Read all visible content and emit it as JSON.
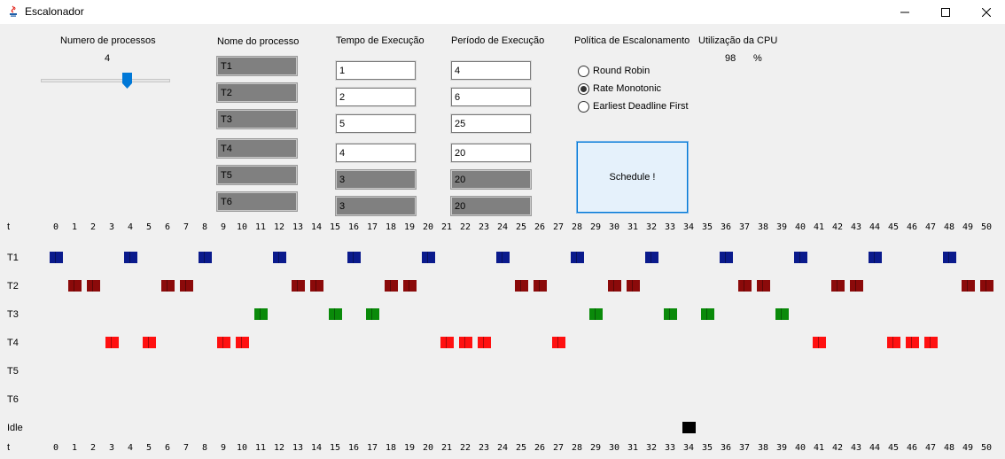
{
  "window": {
    "title": "Escalonador"
  },
  "process_count": {
    "label": "Numero de processos",
    "value": "4"
  },
  "columns": {
    "name": "Nome do processo",
    "exec_time": "Tempo de Execução",
    "period": "Período de Execução",
    "policy": "Política de Escalonamento",
    "cpu": "Utilização da CPU"
  },
  "processes": [
    {
      "name": "T1",
      "exec": "1",
      "period": "4",
      "enabled": true
    },
    {
      "name": "T2",
      "exec": "2",
      "period": "6",
      "enabled": true
    },
    {
      "name": "T3",
      "exec": "5",
      "period": "25",
      "enabled": true
    },
    {
      "name": "T4",
      "exec": "4",
      "period": "20",
      "enabled": true
    },
    {
      "name": "T5",
      "exec": "3",
      "period": "20",
      "enabled": false
    },
    {
      "name": "T6",
      "exec": "3",
      "period": "20",
      "enabled": false
    }
  ],
  "policies": [
    {
      "label": "Round Robin",
      "selected": false
    },
    {
      "label": "Rate Monotonic",
      "selected": true
    },
    {
      "label": "Earliest Deadline First",
      "selected": false
    }
  ],
  "cpu_utilization": {
    "value": "98",
    "unit": "%"
  },
  "schedule_button": "Schedule !",
  "timeline": {
    "axis_label": "t",
    "ticks": [
      "0",
      "1",
      "2",
      "3",
      "4",
      "5",
      "6",
      "7",
      "8",
      "9",
      "10",
      "11",
      "12",
      "13",
      "14",
      "15",
      "16",
      "17",
      "18",
      "19",
      "20",
      "21",
      "22",
      "23",
      "24",
      "25",
      "26",
      "27",
      "28",
      "29",
      "30",
      "31",
      "32",
      "33",
      "34",
      "35",
      "36",
      "37",
      "38",
      "39",
      "40",
      "41",
      "42",
      "43",
      "44",
      "45",
      "46",
      "47",
      "48",
      "49",
      "50"
    ],
    "rows": [
      {
        "label": "T1",
        "color": "#0a1a8c",
        "slots": [
          0,
          4,
          8,
          12,
          16,
          20,
          24,
          28,
          32,
          36,
          40,
          44,
          48
        ]
      },
      {
        "label": "T2",
        "color": "#8b0a0a",
        "slots": [
          1,
          2,
          6,
          7,
          13,
          14,
          18,
          19,
          25,
          26,
          30,
          31,
          37,
          38,
          42,
          43,
          49,
          50
        ]
      },
      {
        "label": "T3",
        "color": "#0a8a0a",
        "slots": [
          11,
          15,
          17,
          29,
          33,
          35,
          39
        ]
      },
      {
        "label": "T4",
        "color": "#ff1010",
        "slots": [
          3,
          5,
          9,
          10,
          21,
          22,
          23,
          27,
          41,
          45,
          46,
          47
        ]
      },
      {
        "label": "T5",
        "color": "#808080",
        "slots": []
      },
      {
        "label": "T6",
        "color": "#808080",
        "slots": []
      },
      {
        "label": "Idle",
        "color": "#000000",
        "slots": [
          34
        ]
      }
    ]
  }
}
